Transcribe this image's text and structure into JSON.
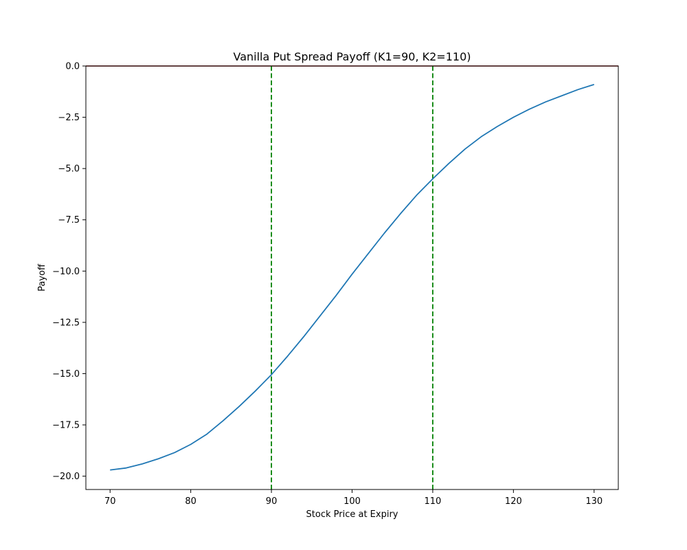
{
  "chart_data": {
    "type": "line",
    "title": "Vanilla Put Spread Payoff (K1=90, K2=110)",
    "xlabel": "Stock Price at Expiry",
    "ylabel": "Payoff",
    "xlim": [
      67,
      133
    ],
    "ylim": [
      -20.65,
      0
    ],
    "x_ticks": [
      70,
      80,
      90,
      100,
      110,
      120,
      130
    ],
    "y_ticks": [
      0.0,
      -2.5,
      -5.0,
      -7.5,
      -10.0,
      -12.5,
      -15.0,
      -17.5,
      -20.0
    ],
    "x_tick_labels": [
      "70",
      "80",
      "90",
      "100",
      "110",
      "120",
      "130"
    ],
    "y_tick_labels": [
      "0.0",
      "−2.5",
      "−5.0",
      "−7.5",
      "−10.0",
      "−12.5",
      "−15.0",
      "−17.5",
      "−20.0"
    ],
    "grid": false,
    "series": [
      {
        "color": "#1f77b4",
        "x": [
          70,
          72,
          74,
          76,
          78,
          80,
          82,
          84,
          86,
          88,
          90,
          92,
          94,
          96,
          98,
          100,
          102,
          104,
          106,
          108,
          110,
          112,
          114,
          116,
          118,
          120,
          122,
          124,
          126,
          128,
          130
        ],
        "y": [
          -19.7,
          -19.6,
          -19.4,
          -19.15,
          -18.85,
          -18.45,
          -17.95,
          -17.3,
          -16.6,
          -15.85,
          -15.05,
          -14.15,
          -13.2,
          -12.2,
          -11.2,
          -10.15,
          -9.15,
          -8.15,
          -7.2,
          -6.3,
          -5.5,
          -4.75,
          -4.05,
          -3.45,
          -2.95,
          -2.5,
          -2.1,
          -1.75,
          -1.45,
          -1.15,
          -0.9
        ]
      }
    ],
    "reference_lines": [
      {
        "orientation": "horizontal",
        "value": 0,
        "color": "#8b0000",
        "style": "solid"
      },
      {
        "orientation": "vertical",
        "value": 90,
        "color": "#008000",
        "style": "dashed"
      },
      {
        "orientation": "vertical",
        "value": 110,
        "color": "#008000",
        "style": "dashed"
      }
    ]
  }
}
